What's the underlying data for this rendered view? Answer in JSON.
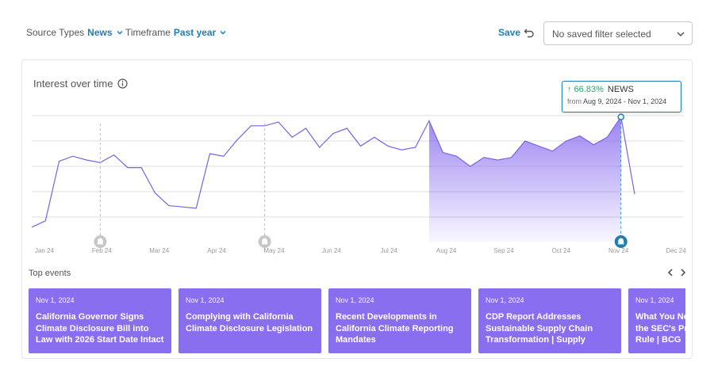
{
  "filters": {
    "source_types_label": "Source Types",
    "source_types_value": "News",
    "timeframe_label": "Timeframe",
    "timeframe_value": "Past year",
    "save_label": "Save",
    "saved_filter_placeholder": "No saved filter selected"
  },
  "card": {
    "title": "Interest over time",
    "tooltip": {
      "change": "↑ 66.83%",
      "series": "NEWS",
      "from_label": "from",
      "range": "Aug 9, 2024 - Nov 1, 2024"
    },
    "top_events_label": "Top events",
    "events": [
      {
        "date": "Nov 1, 2024",
        "title": "California Governor Signs Climate Disclosure Bill into Law with 2026 Start Date Intact"
      },
      {
        "date": "Nov 1, 2024",
        "title": "Complying with California Climate Disclosure Legislation"
      },
      {
        "date": "Nov 1, 2024",
        "title": "Recent Developments in California Climate Reporting Mandates"
      },
      {
        "date": "Nov 1, 2024",
        "title": "CDP Report Addresses Sustainable Supply Chain Transformation | Supply Chai…"
      },
      {
        "date": "Nov 1, 2024",
        "title": "What You Need to Know About the SEC's Proposed Climate Rule | BCG"
      }
    ]
  },
  "chart_data": {
    "type": "line",
    "x_tick_labels": [
      "Jan 24",
      "Feb 24",
      "Mar 24",
      "Apr 24",
      "May 24",
      "Jun 24",
      "Jul 24",
      "Aug 24",
      "Sep 24",
      "Oct 24",
      "Nov 24",
      "Dec 24"
    ],
    "series": [
      {
        "values": [
          12,
          17,
          64,
          68,
          65,
          63,
          69,
          59,
          59,
          39,
          29,
          28,
          27,
          70,
          68,
          81,
          92,
          92,
          95,
          83,
          90,
          75,
          86,
          90,
          76,
          83,
          76,
          73,
          75,
          96,
          71,
          68,
          60,
          67,
          65,
          67,
          80,
          76,
          72,
          80,
          84,
          77,
          83,
          99,
          38
        ],
        "highlight_range": [
          29,
          43
        ],
        "highlight_color": "#8a6ef0",
        "line_color": "#7b62e6"
      }
    ],
    "event_markers": [
      {
        "x_index": 5,
        "active": false
      },
      {
        "x_index": 17,
        "active": false
      },
      {
        "x_index": 43,
        "active": true
      }
    ],
    "y_min": 0,
    "y_max": 100,
    "grid": true
  }
}
